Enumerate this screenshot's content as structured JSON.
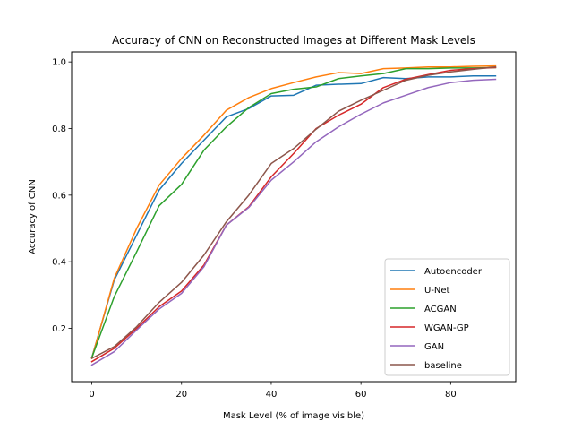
{
  "chart_data": {
    "type": "line",
    "title": "Accuracy of CNN on Reconstructed Images at Different Mask Levels",
    "xlabel": "Mask Level (% of image visible)",
    "ylabel": "Accuracy of CNN",
    "xlim": [
      -4.5,
      94.5
    ],
    "ylim": [
      0.04,
      1.03
    ],
    "xticks": [
      0,
      20,
      40,
      60,
      80
    ],
    "yticks": [
      0.2,
      0.4,
      0.6,
      0.8,
      1.0
    ],
    "ytick_labels": [
      "0.2",
      "0.4",
      "0.6",
      "0.8",
      "1.0"
    ],
    "grid": false,
    "legend_position": "lower-right",
    "x": [
      0,
      5,
      10,
      15,
      20,
      25,
      30,
      35,
      40,
      45,
      50,
      55,
      60,
      65,
      70,
      75,
      80,
      85,
      90
    ],
    "series": [
      {
        "name": "Autoencoder",
        "color": "#1f77b4",
        "values": [
          0.112,
          0.345,
          0.48,
          0.615,
          0.695,
          0.765,
          0.835,
          0.86,
          0.898,
          0.9,
          0.93,
          0.933,
          0.935,
          0.953,
          0.95,
          0.955,
          0.955,
          0.958,
          0.958
        ]
      },
      {
        "name": "U-Net",
        "color": "#ff7f0e",
        "values": [
          0.11,
          0.35,
          0.5,
          0.63,
          0.71,
          0.78,
          0.855,
          0.893,
          0.92,
          0.938,
          0.955,
          0.968,
          0.965,
          0.98,
          0.982,
          0.985,
          0.985,
          0.987,
          0.988
        ]
      },
      {
        "name": "ACGAN",
        "color": "#2ca02c",
        "values": [
          0.112,
          0.295,
          0.43,
          0.568,
          0.632,
          0.735,
          0.805,
          0.863,
          0.905,
          0.918,
          0.925,
          0.95,
          0.958,
          0.965,
          0.98,
          0.98,
          0.982,
          0.982,
          0.983
        ]
      },
      {
        "name": "WGAN-GP",
        "color": "#d62728",
        "values": [
          0.1,
          0.14,
          0.2,
          0.265,
          0.312,
          0.39,
          0.51,
          0.565,
          0.655,
          0.725,
          0.8,
          0.84,
          0.873,
          0.923,
          0.948,
          0.962,
          0.975,
          0.98,
          0.983
        ]
      },
      {
        "name": "GAN",
        "color": "#9467bd",
        "values": [
          0.09,
          0.13,
          0.195,
          0.258,
          0.305,
          0.385,
          0.51,
          0.563,
          0.645,
          0.7,
          0.76,
          0.805,
          0.843,
          0.877,
          0.9,
          0.923,
          0.938,
          0.945,
          0.948
        ]
      },
      {
        "name": "baseline",
        "color": "#8c564b",
        "values": [
          0.11,
          0.145,
          0.205,
          0.278,
          0.338,
          0.42,
          0.52,
          0.6,
          0.695,
          0.74,
          0.798,
          0.852,
          0.885,
          0.915,
          0.945,
          0.96,
          0.97,
          0.978,
          0.985
        ]
      }
    ]
  }
}
